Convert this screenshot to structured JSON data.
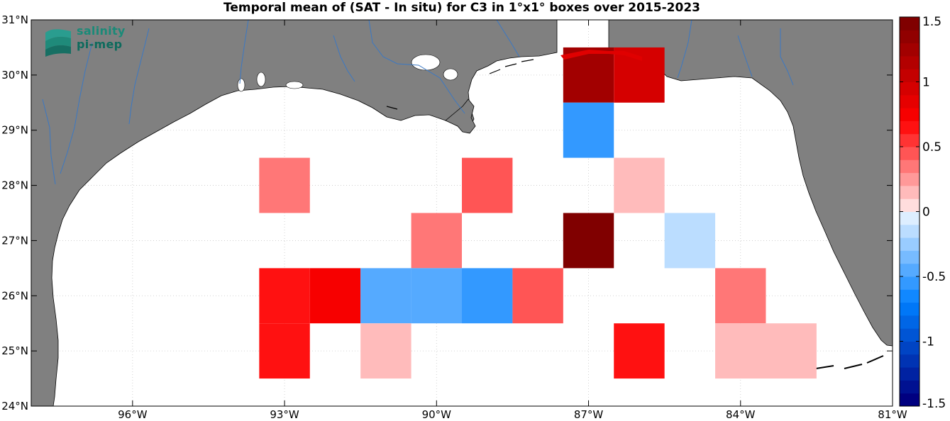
{
  "title": "Temporal mean of (SAT - In situ) for C3 in 1°x1° boxes over 2015-2023",
  "logo": {
    "line1": "salinity",
    "line2": "pi-mep"
  },
  "axes": {
    "lon_min": -98,
    "lon_max": -81,
    "lat_min": 24,
    "lat_max": 31,
    "x_ticks": [
      -96,
      -93,
      -90,
      -87,
      -84,
      -81
    ],
    "x_tick_labels": [
      "96°W",
      "93°W",
      "90°W",
      "87°W",
      "84°W",
      "81°W"
    ],
    "y_ticks": [
      24,
      25,
      26,
      27,
      28,
      29,
      30,
      31
    ],
    "y_tick_labels": [
      "24°N",
      "25°N",
      "26°N",
      "27°N",
      "28°N",
      "29°N",
      "30°N",
      "31°N"
    ],
    "grid": "dotted"
  },
  "colorbar": {
    "min": -1.5,
    "max": 1.5,
    "levels": 30,
    "ticks": [
      1.5,
      1,
      0.5,
      0,
      -0.5,
      -1,
      -1.5
    ],
    "tick_labels": [
      "1.5",
      "1",
      "0.5",
      "0",
      "-0.5",
      "-1",
      "-1.5"
    ]
  },
  "colors": {
    "land": "#808080",
    "coast": "#000000",
    "rivers": "#3b78c3",
    "ocean": "#ffffff"
  },
  "chart_data": {
    "type": "heatmap",
    "cell_size_deg": 1,
    "units": "SAT - In situ",
    "cells": [
      {
        "lon": -87,
        "lat": 30,
        "value": 1.25
      },
      {
        "lon": -86,
        "lat": 30,
        "value": 0.95
      },
      {
        "lon": -87,
        "lat": 29,
        "value": -0.6
      },
      {
        "lon": -93,
        "lat": 28,
        "value": 0.3
      },
      {
        "lon": -89,
        "lat": 28,
        "value": 0.45
      },
      {
        "lon": -86,
        "lat": 28,
        "value": 0.15
      },
      {
        "lon": -90,
        "lat": 27,
        "value": 0.3
      },
      {
        "lon": -87,
        "lat": 27,
        "value": 1.45
      },
      {
        "lon": -85,
        "lat": 27,
        "value": -0.15
      },
      {
        "lon": -93,
        "lat": 26,
        "value": 0.6
      },
      {
        "lon": -92,
        "lat": 26,
        "value": 0.75
      },
      {
        "lon": -91,
        "lat": 26,
        "value": -0.45
      },
      {
        "lon": -90,
        "lat": 26,
        "value": -0.45
      },
      {
        "lon": -89,
        "lat": 26,
        "value": -0.6
      },
      {
        "lon": -88,
        "lat": 26,
        "value": 0.45
      },
      {
        "lon": -84,
        "lat": 26,
        "value": 0.3
      },
      {
        "lon": -93,
        "lat": 25,
        "value": 0.6
      },
      {
        "lon": -91,
        "lat": 25,
        "value": 0.15
      },
      {
        "lon": -86,
        "lat": 25,
        "value": 0.6
      },
      {
        "lon": -84,
        "lat": 25,
        "value": 0.15
      },
      {
        "lon": -83,
        "lat": 25,
        "value": 0.15
      }
    ]
  }
}
